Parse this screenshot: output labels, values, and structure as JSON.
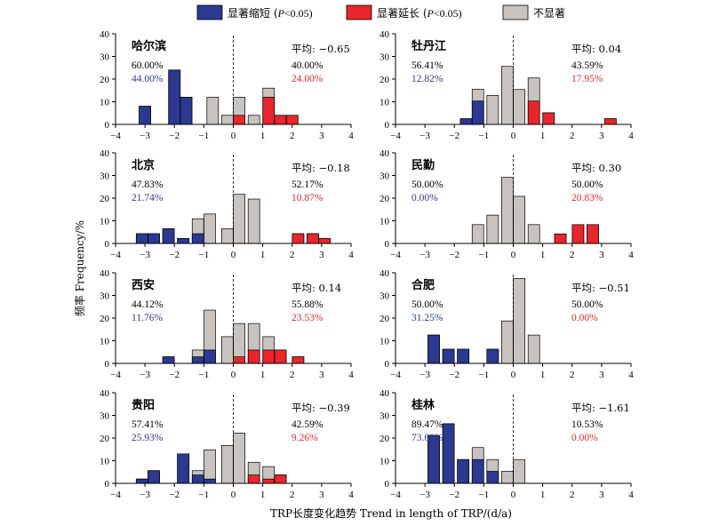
{
  "chart_data": {
    "type": "bar",
    "title": "",
    "xlabel": "TRP长度变化趋势 Trend in length of TRP/(d/a)",
    "ylabel": "频率 Frequency/%",
    "xlim": [
      -4,
      4
    ],
    "ylim": [
      0,
      40
    ],
    "xticks": [
      -4,
      -3,
      -2,
      -1,
      0,
      1,
      2,
      3,
      4
    ],
    "yticks": [
      0,
      10,
      20,
      30,
      40
    ],
    "legend_position": "top-center",
    "colors": {
      "shorten": "#2b3990",
      "extend": "#e8262b",
      "insig": "#c8c3bf"
    },
    "legend": [
      {
        "key": "shorten",
        "pre": "显著缩短 (",
        "italic": "P",
        "post": "<0.05)"
      },
      {
        "key": "extend",
        "pre": "显著延长 (",
        "italic": "P",
        "post": "<0.05)"
      },
      {
        "key": "insig",
        "pre": "不显著",
        "italic": "",
        "post": ""
      }
    ],
    "panels": [
      {
        "name": "哈尔滨",
        "avg_label": "平均: −0.65",
        "left_total": "60.00%",
        "left_sig": "44.00%",
        "right_total": "40.00%",
        "right_sig": "24.00%",
        "bars": [
          {
            "x": -3.0,
            "total": 8,
            "sig": 8,
            "dir": "shorten"
          },
          {
            "x": -2.0,
            "total": 24,
            "sig": 24,
            "dir": "shorten"
          },
          {
            "x": -1.6,
            "total": 12,
            "sig": 12,
            "dir": "shorten"
          },
          {
            "x": -0.7,
            "total": 12,
            "sig": 0,
            "dir": "none"
          },
          {
            "x": -0.2,
            "total": 4,
            "sig": 0,
            "dir": "none"
          },
          {
            "x": 0.2,
            "total": 12,
            "sig": 4,
            "dir": "extend"
          },
          {
            "x": 0.7,
            "total": 4,
            "sig": 0,
            "dir": "none"
          },
          {
            "x": 1.2,
            "total": 16,
            "sig": 12,
            "dir": "extend"
          },
          {
            "x": 1.6,
            "total": 4,
            "sig": 4,
            "dir": "extend"
          },
          {
            "x": 2.0,
            "total": 4,
            "sig": 4,
            "dir": "extend"
          }
        ]
      },
      {
        "name": "牡丹江",
        "avg_label": "平均: 0.04",
        "left_total": "56.41%",
        "left_sig": "12.82%",
        "right_total": "43.59%",
        "right_sig": "17.95%",
        "bars": [
          {
            "x": -1.6,
            "total": 2.5,
            "sig": 2.5,
            "dir": "shorten"
          },
          {
            "x": -1.2,
            "total": 15.5,
            "sig": 10.3,
            "dir": "shorten"
          },
          {
            "x": -0.7,
            "total": 12.8,
            "sig": 0,
            "dir": "none"
          },
          {
            "x": -0.2,
            "total": 25.6,
            "sig": 0,
            "dir": "none"
          },
          {
            "x": 0.2,
            "total": 15.4,
            "sig": 0,
            "dir": "none"
          },
          {
            "x": 0.7,
            "total": 20.5,
            "sig": 10.3,
            "dir": "extend"
          },
          {
            "x": 1.2,
            "total": 5.1,
            "sig": 5.1,
            "dir": "extend"
          },
          {
            "x": 3.3,
            "total": 2.5,
            "sig": 2.5,
            "dir": "extend"
          }
        ]
      },
      {
        "name": "北京",
        "avg_label": "平均: −0.18",
        "left_total": "47.83%",
        "left_sig": "21.74%",
        "right_total": "52.17%",
        "right_sig": "10.87%",
        "bars": [
          {
            "x": -3.1,
            "total": 4.3,
            "sig": 4.3,
            "dir": "shorten"
          },
          {
            "x": -2.7,
            "total": 4.3,
            "sig": 4.3,
            "dir": "shorten"
          },
          {
            "x": -2.2,
            "total": 6.5,
            "sig": 6.5,
            "dir": "shorten"
          },
          {
            "x": -1.7,
            "total": 2.2,
            "sig": 2.2,
            "dir": "shorten"
          },
          {
            "x": -1.2,
            "total": 10.9,
            "sig": 4.3,
            "dir": "shorten"
          },
          {
            "x": -0.8,
            "total": 13.0,
            "sig": 0,
            "dir": "none"
          },
          {
            "x": -0.2,
            "total": 6.5,
            "sig": 0,
            "dir": "none"
          },
          {
            "x": 0.2,
            "total": 21.7,
            "sig": 0,
            "dir": "none"
          },
          {
            "x": 0.7,
            "total": 19.6,
            "sig": 0,
            "dir": "none"
          },
          {
            "x": 2.2,
            "total": 4.3,
            "sig": 4.3,
            "dir": "extend"
          },
          {
            "x": 2.7,
            "total": 4.3,
            "sig": 4.3,
            "dir": "extend"
          },
          {
            "x": 3.1,
            "total": 2.2,
            "sig": 2.2,
            "dir": "extend"
          }
        ]
      },
      {
        "name": "民勤",
        "avg_label": "平均: 0.30",
        "left_total": "50.00%",
        "left_sig": "0.00%",
        "right_total": "50.00%",
        "right_sig": "20.83%",
        "bars": [
          {
            "x": -1.2,
            "total": 8.3,
            "sig": 0,
            "dir": "none"
          },
          {
            "x": -0.7,
            "total": 12.5,
            "sig": 0,
            "dir": "none"
          },
          {
            "x": -0.2,
            "total": 29.2,
            "sig": 0,
            "dir": "none"
          },
          {
            "x": 0.2,
            "total": 20.8,
            "sig": 0,
            "dir": "none"
          },
          {
            "x": 0.7,
            "total": 8.3,
            "sig": 0,
            "dir": "none"
          },
          {
            "x": 1.6,
            "total": 4.2,
            "sig": 4.2,
            "dir": "extend"
          },
          {
            "x": 2.2,
            "total": 8.3,
            "sig": 8.3,
            "dir": "extend"
          },
          {
            "x": 2.7,
            "total": 8.3,
            "sig": 8.3,
            "dir": "extend"
          }
        ]
      },
      {
        "name": "西安",
        "avg_label": "平均: 0.14",
        "left_total": "44.12%",
        "left_sig": "11.76%",
        "right_total": "55.88%",
        "right_sig": "23.53%",
        "bars": [
          {
            "x": -2.2,
            "total": 2.9,
            "sig": 2.9,
            "dir": "shorten"
          },
          {
            "x": -1.2,
            "total": 5.9,
            "sig": 2.9,
            "dir": "shorten"
          },
          {
            "x": -0.8,
            "total": 23.5,
            "sig": 5.9,
            "dir": "shorten"
          },
          {
            "x": -0.2,
            "total": 11.8,
            "sig": 0,
            "dir": "none"
          },
          {
            "x": 0.2,
            "total": 17.6,
            "sig": 2.9,
            "dir": "extend"
          },
          {
            "x": 0.7,
            "total": 17.6,
            "sig": 5.9,
            "dir": "extend"
          },
          {
            "x": 1.2,
            "total": 11.8,
            "sig": 5.9,
            "dir": "extend"
          },
          {
            "x": 1.6,
            "total": 5.9,
            "sig": 5.9,
            "dir": "extend"
          },
          {
            "x": 2.2,
            "total": 2.9,
            "sig": 2.9,
            "dir": "extend"
          }
        ]
      },
      {
        "name": "合肥",
        "avg_label": "平均: −0.51",
        "left_total": "50.00%",
        "left_sig": "31.25%",
        "right_total": "50.00%",
        "right_sig": "0.00%",
        "bars": [
          {
            "x": -2.7,
            "total": 12.5,
            "sig": 12.5,
            "dir": "shorten"
          },
          {
            "x": -2.2,
            "total": 6.25,
            "sig": 6.25,
            "dir": "shorten"
          },
          {
            "x": -1.7,
            "total": 6.25,
            "sig": 6.25,
            "dir": "shorten"
          },
          {
            "x": -0.7,
            "total": 6.25,
            "sig": 6.25,
            "dir": "shorten"
          },
          {
            "x": -0.2,
            "total": 18.75,
            "sig": 0,
            "dir": "none"
          },
          {
            "x": 0.2,
            "total": 37.5,
            "sig": 0,
            "dir": "none"
          },
          {
            "x": 0.7,
            "total": 12.5,
            "sig": 0,
            "dir": "none"
          }
        ]
      },
      {
        "name": "贵阳",
        "avg_label": "平均: −0.39",
        "left_total": "57.41%",
        "left_sig": "25.93%",
        "right_total": "42.59%",
        "right_sig": "9.26%",
        "bars": [
          {
            "x": -3.1,
            "total": 1.9,
            "sig": 1.9,
            "dir": "shorten"
          },
          {
            "x": -2.7,
            "total": 5.6,
            "sig": 5.6,
            "dir": "shorten"
          },
          {
            "x": -1.7,
            "total": 13.0,
            "sig": 13.0,
            "dir": "shorten"
          },
          {
            "x": -1.2,
            "total": 5.6,
            "sig": 3.7,
            "dir": "shorten"
          },
          {
            "x": -0.8,
            "total": 14.8,
            "sig": 1.9,
            "dir": "shorten"
          },
          {
            "x": -0.2,
            "total": 16.7,
            "sig": 0,
            "dir": "none"
          },
          {
            "x": 0.2,
            "total": 22.2,
            "sig": 0,
            "dir": "none"
          },
          {
            "x": 0.7,
            "total": 9.3,
            "sig": 3.7,
            "dir": "extend"
          },
          {
            "x": 1.2,
            "total": 7.4,
            "sig": 1.9,
            "dir": "extend"
          },
          {
            "x": 1.6,
            "total": 3.7,
            "sig": 3.7,
            "dir": "extend"
          }
        ]
      },
      {
        "name": "桂林",
        "avg_label": "平均: −1.61",
        "left_total": "89.47%",
        "left_sig": "73.68%",
        "right_total": "10.53%",
        "right_sig": "0.00%",
        "bars": [
          {
            "x": -2.7,
            "total": 21.1,
            "sig": 21.1,
            "dir": "shorten"
          },
          {
            "x": -2.2,
            "total": 26.3,
            "sig": 26.3,
            "dir": "shorten"
          },
          {
            "x": -1.7,
            "total": 10.5,
            "sig": 10.5,
            "dir": "shorten"
          },
          {
            "x": -1.2,
            "total": 15.8,
            "sig": 10.5,
            "dir": "shorten"
          },
          {
            "x": -0.7,
            "total": 10.5,
            "sig": 5.3,
            "dir": "shorten"
          },
          {
            "x": -0.2,
            "total": 5.3,
            "sig": 0,
            "dir": "none"
          },
          {
            "x": 0.2,
            "total": 10.5,
            "sig": 0,
            "dir": "none"
          }
        ]
      }
    ]
  }
}
